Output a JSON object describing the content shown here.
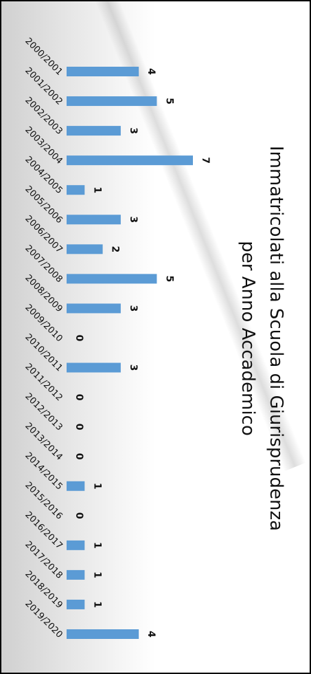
{
  "chart_data": {
    "type": "bar",
    "orientation": "horizontal",
    "title_lines": [
      "Immatricolati alla Scuola di Giurisprudenza",
      "per Anno Accademico"
    ],
    "categories": [
      "2000/2001",
      "2001/2002",
      "2002/2003",
      "2003/2004",
      "2004/2005",
      "2005/2006",
      "2006/2007",
      "2007/2008",
      "2008/2009",
      "2009/2010",
      "2010/2011",
      "2011/2012",
      "2012/2013",
      "2013/2014",
      "2014/2015",
      "2015/2016",
      "2016/2017",
      "2017/2018",
      "2018/2019",
      "2019/2020"
    ],
    "values": [
      4,
      5,
      3,
      7,
      1,
      3,
      2,
      5,
      3,
      0,
      3,
      0,
      0,
      0,
      1,
      0,
      1,
      1,
      1,
      4
    ],
    "xlim": [
      0,
      7
    ],
    "bar_color": "#5b9bd5",
    "grid": false,
    "legend": "none"
  }
}
